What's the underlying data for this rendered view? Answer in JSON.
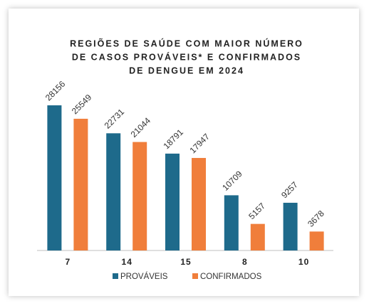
{
  "chart_data": {
    "type": "bar",
    "title": [
      "REGIÕES DE SAÚDE COM MAIOR NÚMERO",
      "DE CASOS PROVÁVEIS* E CONFIRMADOS",
      "DE DENGUE EM 2024"
    ],
    "categories": [
      "7",
      "14",
      "15",
      "8",
      "10"
    ],
    "series": [
      {
        "name": "PROVÁVEIS",
        "color": "#1e6a8b",
        "values": [
          28156,
          22731,
          18791,
          10709,
          9257
        ]
      },
      {
        "name": "CONFIRMADOS",
        "color": "#f07e3b",
        "values": [
          25549,
          21044,
          17947,
          5157,
          3678
        ]
      }
    ]
  }
}
